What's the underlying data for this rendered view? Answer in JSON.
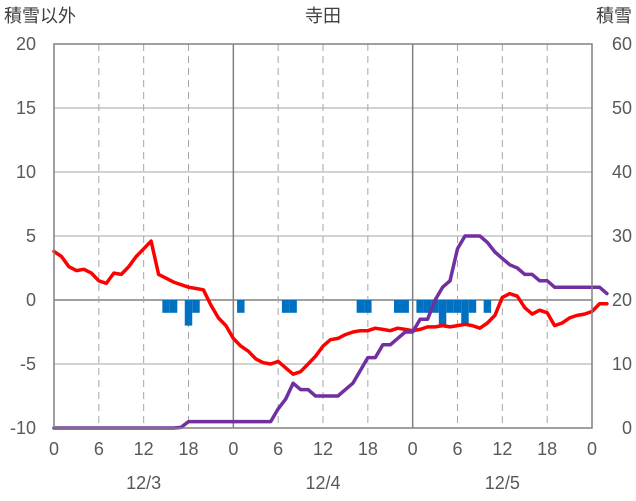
{
  "chart_data": {
    "type": "line",
    "title": "寺田",
    "left_axis_label": "積雪以外",
    "right_axis_label": "積雪",
    "left_ylim": [
      -10,
      20
    ],
    "left_yticks": [
      20,
      15,
      10,
      5,
      0,
      -5,
      -10
    ],
    "right_ylim": [
      0,
      60
    ],
    "right_yticks": [
      60,
      50,
      40,
      30,
      20,
      10,
      0
    ],
    "x_hour_ticks": [
      "0",
      "6",
      "12",
      "18",
      "0",
      "6",
      "12",
      "18",
      "0",
      "6",
      "12",
      "18",
      "0"
    ],
    "date_labels": [
      "12/3",
      "12/4",
      "12/5"
    ],
    "grid": true,
    "series": [
      {
        "axis": "left",
        "color": "#ff0000",
        "points": [
          [
            0,
            3.8
          ],
          [
            1,
            3.4
          ],
          [
            2,
            2.6
          ],
          [
            3,
            2.3
          ],
          [
            4,
            2.4
          ],
          [
            5,
            2.1
          ],
          [
            6,
            1.5
          ],
          [
            7,
            1.3
          ],
          [
            8,
            2.1
          ],
          [
            9,
            2.0
          ],
          [
            10,
            2.6
          ],
          [
            11,
            3.4
          ],
          [
            12,
            4.0
          ],
          [
            13,
            4.6
          ],
          [
            14,
            2.0
          ],
          [
            15,
            1.7
          ],
          [
            16,
            1.4
          ],
          [
            17,
            1.2
          ],
          [
            18,
            1.0
          ],
          [
            19,
            0.9
          ],
          [
            20,
            0.8
          ],
          [
            21,
            -0.4
          ],
          [
            22,
            -1.4
          ],
          [
            23,
            -2.0
          ],
          [
            24,
            -3.0
          ],
          [
            25,
            -3.6
          ],
          [
            26,
            -4.0
          ],
          [
            27,
            -4.6
          ],
          [
            28,
            -4.9
          ],
          [
            29,
            -5.0
          ],
          [
            30,
            -4.8
          ],
          [
            31,
            -5.3
          ],
          [
            32,
            -5.8
          ],
          [
            33,
            -5.6
          ],
          [
            34,
            -5.0
          ],
          [
            35,
            -4.4
          ],
          [
            36,
            -3.6
          ],
          [
            37,
            -3.1
          ],
          [
            38,
            -3.0
          ],
          [
            39,
            -2.7
          ],
          [
            40,
            -2.5
          ],
          [
            41,
            -2.4
          ],
          [
            42,
            -2.4
          ],
          [
            43,
            -2.2
          ],
          [
            44,
            -2.3
          ],
          [
            45,
            -2.4
          ],
          [
            46,
            -2.2
          ],
          [
            47,
            -2.3
          ],
          [
            48,
            -2.4
          ],
          [
            49,
            -2.3
          ],
          [
            50,
            -2.1
          ],
          [
            51,
            -2.1
          ],
          [
            52,
            -2.0
          ],
          [
            53,
            -2.1
          ],
          [
            54,
            -2.0
          ],
          [
            55,
            -1.9
          ],
          [
            56,
            -2.0
          ],
          [
            57,
            -2.2
          ],
          [
            58,
            -1.8
          ],
          [
            59,
            -1.2
          ],
          [
            60,
            0.2
          ],
          [
            61,
            0.5
          ],
          [
            62,
            0.3
          ],
          [
            63,
            -0.6
          ],
          [
            64,
            -1.1
          ],
          [
            65,
            -0.8
          ],
          [
            66,
            -1.0
          ],
          [
            67,
            -2.0
          ],
          [
            68,
            -1.8
          ],
          [
            69,
            -1.4
          ],
          [
            70,
            -1.2
          ],
          [
            71,
            -1.1
          ],
          [
            72,
            -0.9
          ],
          [
            73,
            -0.3
          ],
          [
            74,
            -0.3
          ]
        ]
      },
      {
        "axis": "right",
        "color": "#7030a0",
        "points": [
          [
            0,
            0
          ],
          [
            1,
            0
          ],
          [
            2,
            0
          ],
          [
            3,
            0
          ],
          [
            4,
            0
          ],
          [
            5,
            0
          ],
          [
            6,
            0
          ],
          [
            7,
            0
          ],
          [
            8,
            0
          ],
          [
            9,
            0
          ],
          [
            10,
            0
          ],
          [
            11,
            0
          ],
          [
            12,
            0
          ],
          [
            13,
            0
          ],
          [
            14,
            0
          ],
          [
            15,
            0
          ],
          [
            16,
            0
          ],
          [
            17,
            0.1
          ],
          [
            18,
            1
          ],
          [
            19,
            1
          ],
          [
            20,
            1
          ],
          [
            21,
            1
          ],
          [
            22,
            1
          ],
          [
            23,
            1
          ],
          [
            24,
            1
          ],
          [
            25,
            1
          ],
          [
            26,
            1
          ],
          [
            27,
            1
          ],
          [
            28,
            1
          ],
          [
            29,
            1
          ],
          [
            30,
            3
          ],
          [
            31,
            4.5
          ],
          [
            32,
            7
          ],
          [
            33,
            6
          ],
          [
            34,
            6
          ],
          [
            35,
            5
          ],
          [
            36,
            5
          ],
          [
            37,
            5
          ],
          [
            38,
            5
          ],
          [
            39,
            6
          ],
          [
            40,
            7
          ],
          [
            41,
            9
          ],
          [
            42,
            11
          ],
          [
            43,
            11
          ],
          [
            44,
            13
          ],
          [
            45,
            13
          ],
          [
            46,
            14
          ],
          [
            47,
            15
          ],
          [
            48,
            15
          ],
          [
            49,
            17
          ],
          [
            50,
            17
          ],
          [
            51,
            20
          ],
          [
            52,
            22
          ],
          [
            53,
            23
          ],
          [
            54,
            28
          ],
          [
            55,
            30
          ],
          [
            56,
            30
          ],
          [
            57,
            30
          ],
          [
            58,
            29
          ],
          [
            59,
            27.5
          ],
          [
            60,
            26.5
          ],
          [
            61,
            25.5
          ],
          [
            62,
            25
          ],
          [
            63,
            24
          ],
          [
            64,
            24
          ],
          [
            65,
            23
          ],
          [
            66,
            23
          ],
          [
            67,
            22
          ],
          [
            68,
            22
          ],
          [
            69,
            22
          ],
          [
            70,
            22
          ],
          [
            71,
            22
          ],
          [
            72,
            22
          ],
          [
            73,
            22
          ],
          [
            74,
            21
          ]
        ]
      }
    ],
    "bars": {
      "axis": "left",
      "color": "#0070c0",
      "items": [
        [
          15,
          -1
        ],
        [
          16,
          -1
        ],
        [
          18,
          -2
        ],
        [
          19,
          -1
        ],
        [
          25,
          -1
        ],
        [
          31,
          -1
        ],
        [
          32,
          -1
        ],
        [
          41,
          -1
        ],
        [
          42,
          -1
        ],
        [
          46,
          -1
        ],
        [
          47,
          -1
        ],
        [
          49,
          -1
        ],
        [
          50,
          -1
        ],
        [
          51,
          -1
        ],
        [
          52,
          -2
        ],
        [
          53,
          -1
        ],
        [
          54,
          -1
        ],
        [
          55,
          -2
        ],
        [
          56,
          -1
        ],
        [
          58,
          -1
        ]
      ]
    }
  }
}
